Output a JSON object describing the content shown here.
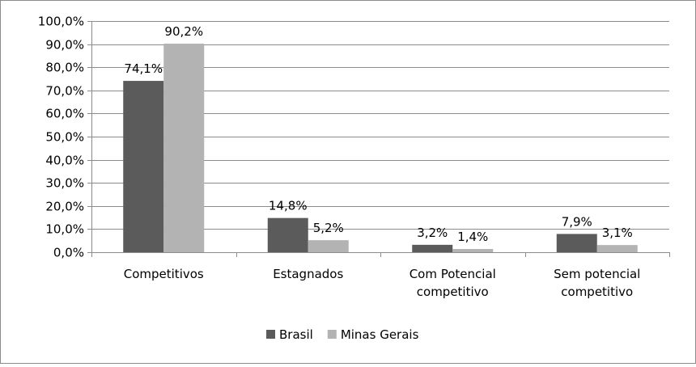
{
  "chart_data": {
    "type": "bar",
    "categories": [
      [
        "Competitivos"
      ],
      [
        "Estagnados"
      ],
      [
        "Com Potencial",
        "competitivo"
      ],
      [
        "Sem potencial",
        "competitivo"
      ]
    ],
    "series": [
      {
        "name": "Brasil",
        "color": "#5b5b5b",
        "values": [
          74.1,
          14.8,
          3.2,
          7.9
        ],
        "labels": [
          "74,1%",
          "14,8%",
          "3,2%",
          "7,9%"
        ]
      },
      {
        "name": "Minas Gerais",
        "color": "#b3b3b3",
        "values": [
          90.2,
          5.2,
          1.4,
          3.1
        ],
        "labels": [
          "90,2%",
          "5,2%",
          "1,4%",
          "3,1%"
        ]
      }
    ],
    "ylim": [
      0,
      100
    ],
    "yticks": [
      0,
      10,
      20,
      30,
      40,
      50,
      60,
      70,
      80,
      90,
      100
    ],
    "ytick_labels": [
      "0,0%",
      "10,0%",
      "20,0%",
      "30,0%",
      "40,0%",
      "50,0%",
      "60,0%",
      "70,0%",
      "80,0%",
      "90,0%",
      "100,0%"
    ],
    "grid": true,
    "legend_position": "bottom",
    "title": "",
    "xlabel": "",
    "ylabel": ""
  }
}
